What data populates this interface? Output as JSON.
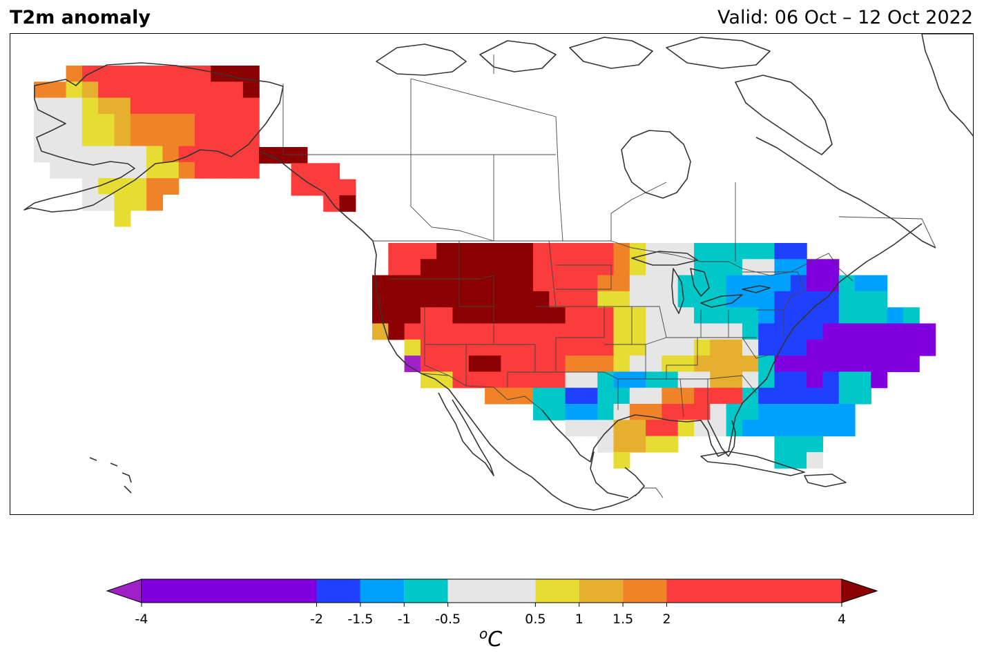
{
  "title": "T2m anomaly",
  "valid": "Valid: 06 Oct – 12 Oct 2022",
  "colorbar": {
    "levels": [
      -4,
      -2,
      -1.5,
      -1,
      -0.5,
      0.5,
      1,
      1.5,
      2,
      4
    ],
    "tick_labels": [
      "-4",
      "-2",
      "-1.5",
      "-1",
      "-0.5",
      "0.5",
      "1",
      "1.5",
      "2",
      "4"
    ],
    "colors": [
      "#8000e0",
      "#2040ff",
      "#00a0ff",
      "#00c8c8",
      "#e6e6e6",
      "#e6dc32",
      "#e6af2d",
      "#f08228",
      "#fa3c3c"
    ],
    "under_color": "#a020c8",
    "over_color": "#8b0000",
    "unit_base": "C",
    "unit_sup": "o"
  }
}
